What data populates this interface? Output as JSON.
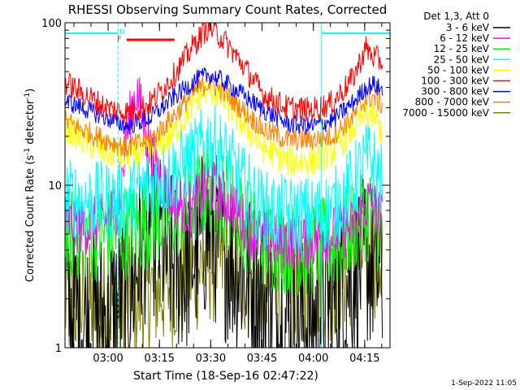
{
  "chart_data": {
    "type": "line",
    "title": "RHESSI Observing Summary Count Rates, Corrected",
    "xlabel": "Start Time (18-Sep-16 02:47:22)",
    "ylabel": "Corrected Count Rate (s⁻¹ detector⁻¹)",
    "ylabel_parts": [
      "Corrected Count Rate (s",
      "-1",
      " detector",
      "-1",
      ")"
    ],
    "yscale": "log",
    "ylim": [
      1,
      100
    ],
    "xlim_minutes": [
      0,
      95
    ],
    "y_tick_labels": [
      "1",
      "10",
      "100"
    ],
    "x_ticks": [
      {
        "label": "03:00",
        "minutes": 12.6
      },
      {
        "label": "03:15",
        "minutes": 27.6
      },
      {
        "label": "03:30",
        "minutes": 42.6
      },
      {
        "label": "03:45",
        "minutes": 57.6
      },
      {
        "label": "04:00",
        "minutes": 72.6
      },
      {
        "label": "04:15",
        "minutes": 87.6
      }
    ],
    "legend_title": "Det 1,3, Att 0",
    "legend_position": "outside-right",
    "timestamp": "1-Sep-2022 11:05",
    "night_markers": [
      "N",
      "F"
    ],
    "night_intervals_minutes": [
      [
        0,
        15.5
      ],
      [
        75,
        95
      ]
    ],
    "flare_bar_minutes": [
      18,
      32
    ],
    "series": [
      {
        "name": "3 - 6 keV",
        "color": "#000000",
        "points": [
          [
            0,
            2
          ],
          [
            5,
            1.5
          ],
          [
            12,
            1.6
          ],
          [
            17,
            2
          ],
          [
            20,
            2.5
          ],
          [
            22,
            4
          ],
          [
            25,
            6
          ],
          [
            30,
            3.5
          ],
          [
            35,
            3
          ],
          [
            42,
            5.5
          ],
          [
            48,
            3.5
          ],
          [
            55,
            2.5
          ],
          [
            62,
            1.5
          ],
          [
            70,
            1.4
          ],
          [
            78,
            2
          ],
          [
            85,
            3
          ],
          [
            88,
            3.5
          ],
          [
            93,
            2.5
          ]
        ],
        "noise": 0.55
      },
      {
        "name": "6 - 12 keV",
        "color": "#ff00ff",
        "points": [
          [
            0,
            6
          ],
          [
            5,
            5.5
          ],
          [
            12,
            6
          ],
          [
            16,
            8
          ],
          [
            18,
            20
          ],
          [
            20,
            33
          ],
          [
            21,
            38
          ],
          [
            23,
            24
          ],
          [
            25,
            16
          ],
          [
            28,
            11
          ],
          [
            32,
            8
          ],
          [
            37,
            7
          ],
          [
            42,
            10
          ],
          [
            48,
            8
          ],
          [
            55,
            5
          ],
          [
            62,
            4.5
          ],
          [
            70,
            4.5
          ],
          [
            78,
            5
          ],
          [
            84,
            5.5
          ],
          [
            87,
            7
          ],
          [
            89,
            8
          ],
          [
            93,
            6
          ]
        ],
        "noise": 0.18
      },
      {
        "name": "12 - 25 keV",
        "color": "#00ff00",
        "points": [
          [
            0,
            5
          ],
          [
            12,
            5
          ],
          [
            18,
            5.2
          ],
          [
            25,
            6
          ],
          [
            35,
            7
          ],
          [
            42,
            10
          ],
          [
            48,
            8
          ],
          [
            55,
            5
          ],
          [
            62,
            4.3
          ],
          [
            70,
            4
          ],
          [
            80,
            4.5
          ],
          [
            87,
            6.5
          ],
          [
            89,
            7
          ],
          [
            93,
            5
          ]
        ],
        "noise": 0.3
      },
      {
        "name": "25 - 50 keV",
        "color": "#00ffff",
        "points": [
          [
            0,
            8.5
          ],
          [
            5,
            8
          ],
          [
            12,
            8
          ],
          [
            18,
            8
          ],
          [
            25,
            10
          ],
          [
            32,
            12
          ],
          [
            38,
            15
          ],
          [
            42,
            19
          ],
          [
            46,
            16
          ],
          [
            52,
            10
          ],
          [
            58,
            7
          ],
          [
            65,
            6.5
          ],
          [
            72,
            6.5
          ],
          [
            78,
            7
          ],
          [
            84,
            10
          ],
          [
            87,
            13
          ],
          [
            89,
            15
          ],
          [
            93,
            10
          ]
        ],
        "noise": 0.25
      },
      {
        "name": "50 - 100 keV",
        "color": "#ffff00",
        "points": [
          [
            0,
            23
          ],
          [
            5,
            19
          ],
          [
            12,
            16
          ],
          [
            18,
            15
          ],
          [
            25,
            16
          ],
          [
            32,
            21
          ],
          [
            38,
            33
          ],
          [
            42,
            40
          ],
          [
            46,
            34
          ],
          [
            52,
            24
          ],
          [
            58,
            17
          ],
          [
            65,
            14
          ],
          [
            72,
            14
          ],
          [
            78,
            16
          ],
          [
            84,
            22
          ],
          [
            88,
            28
          ],
          [
            90,
            27
          ],
          [
            93,
            21
          ]
        ],
        "noise": 0.1
      },
      {
        "name": "100 - 300 keV",
        "color": "#ff0000",
        "points": [
          [
            0,
            43
          ],
          [
            5,
            37
          ],
          [
            12,
            30
          ],
          [
            18,
            28
          ],
          [
            25,
            32
          ],
          [
            32,
            48
          ],
          [
            38,
            75
          ],
          [
            42,
            95
          ],
          [
            46,
            80
          ],
          [
            52,
            55
          ],
          [
            58,
            36
          ],
          [
            65,
            30
          ],
          [
            72,
            29
          ],
          [
            78,
            32
          ],
          [
            84,
            45
          ],
          [
            88,
            70
          ],
          [
            90,
            62
          ],
          [
            93,
            57
          ]
        ],
        "noise": 0.08
      },
      {
        "name": "300 - 800 keV",
        "color": "#0000ff",
        "points": [
          [
            0,
            33
          ],
          [
            5,
            30
          ],
          [
            12,
            26
          ],
          [
            18,
            23
          ],
          [
            25,
            26
          ],
          [
            32,
            35
          ],
          [
            38,
            44
          ],
          [
            42,
            48
          ],
          [
            46,
            44
          ],
          [
            52,
            36
          ],
          [
            58,
            29
          ],
          [
            65,
            24
          ],
          [
            72,
            23
          ],
          [
            78,
            25
          ],
          [
            84,
            32
          ],
          [
            88,
            40
          ],
          [
            90,
            42
          ],
          [
            93,
            38
          ]
        ],
        "noise": 0.06
      },
      {
        "name": "800 - 7000 keV",
        "color": "#ff8000",
        "points": [
          [
            0,
            25
          ],
          [
            5,
            22
          ],
          [
            12,
            19
          ],
          [
            18,
            17
          ],
          [
            25,
            19
          ],
          [
            32,
            27
          ],
          [
            38,
            38
          ],
          [
            42,
            43
          ],
          [
            46,
            38
          ],
          [
            52,
            29
          ],
          [
            58,
            22
          ],
          [
            65,
            19
          ],
          [
            72,
            19
          ],
          [
            78,
            20
          ],
          [
            84,
            26
          ],
          [
            88,
            34
          ],
          [
            90,
            35
          ],
          [
            93,
            31
          ]
        ],
        "noise": 0.07
      },
      {
        "name": "7000 - 15000 keV",
        "color": "#808000",
        "points": [
          [
            0,
            1.9
          ],
          [
            10,
            1.8
          ],
          [
            20,
            2
          ],
          [
            25,
            2.2
          ],
          [
            32,
            2.5
          ],
          [
            38,
            3
          ],
          [
            42,
            3.5
          ],
          [
            48,
            3.2
          ],
          [
            55,
            2.6
          ],
          [
            62,
            2.4
          ],
          [
            70,
            2.5
          ],
          [
            78,
            2.7
          ],
          [
            84,
            3.3
          ],
          [
            88,
            4
          ],
          [
            93,
            3.5
          ]
        ],
        "noise": 0.4
      }
    ]
  }
}
